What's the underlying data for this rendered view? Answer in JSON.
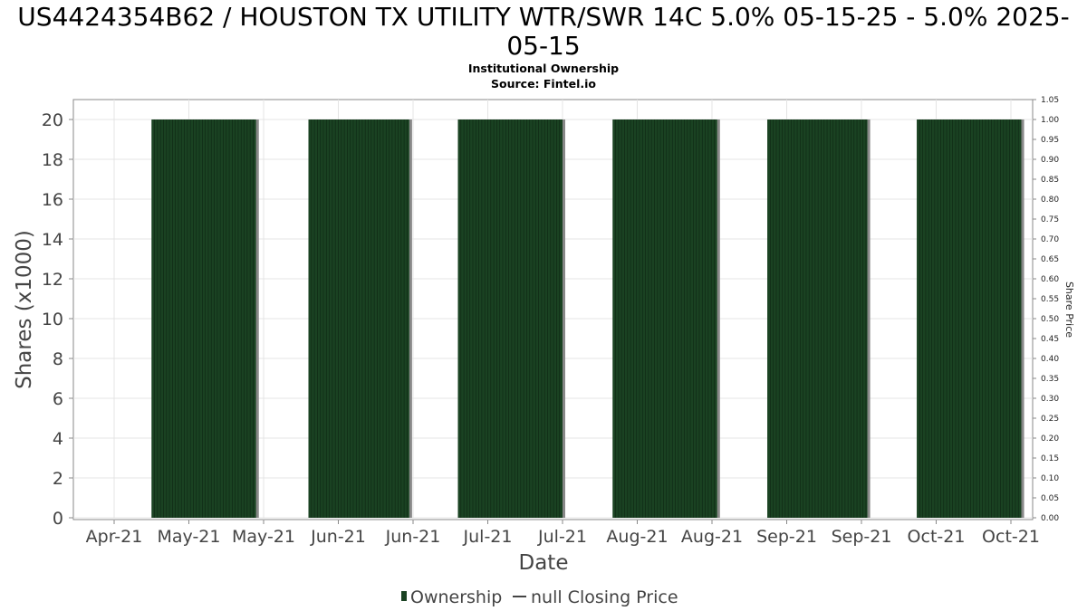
{
  "chart_data": {
    "type": "bar",
    "title": "US4424354B62 / HOUSTON TX UTILITY WTR/SWR 14C 5.0% 05-15-25 - 5.0% 2025-05-15",
    "title_lines": [
      "US4424354B62 / HOUSTON TX UTILITY WTR/SWR 14C 5.0% 05-15-25 - 5.0% 2025-",
      "05-15"
    ],
    "subtitle": "Institutional Ownership",
    "source": "Source: Fintel.io",
    "xlabel": "Date",
    "ylabel": "Shares (x1000)",
    "y2label": "Share Price",
    "ylim": [
      0,
      21
    ],
    "y2lim": [
      0,
      1.05
    ],
    "yticks": [
      "0",
      "2",
      "4",
      "6",
      "8",
      "10",
      "12",
      "14",
      "16",
      "18",
      "20"
    ],
    "y2ticks": [
      "0.00",
      "0.05",
      "0.10",
      "0.15",
      "0.20",
      "0.25",
      "0.30",
      "0.35",
      "0.40",
      "0.45",
      "0.50",
      "0.55",
      "0.60",
      "0.65",
      "0.70",
      "0.75",
      "0.80",
      "0.85",
      "0.90",
      "0.95",
      "1.00",
      "1.05"
    ],
    "xticks": [
      "Apr-21",
      "May-21",
      "May-21",
      "Jun-21",
      "Jun-21",
      "Jul-21",
      "Jul-21",
      "Aug-21",
      "Aug-21",
      "Sep-21",
      "Sep-21",
      "Oct-21",
      "Oct-21"
    ],
    "grid": true,
    "legend_position": "bottom-center",
    "series": [
      {
        "name": "Ownership",
        "color": "#1a4222",
        "blocks": [
          {
            "start_tick": 0.5,
            "end_tick": 1.9,
            "value": 20
          },
          {
            "start_tick": 2.6,
            "end_tick": 3.95,
            "value": 20
          },
          {
            "start_tick": 4.6,
            "end_tick": 6.0,
            "value": 20
          },
          {
            "start_tick": 6.67,
            "end_tick": 8.07,
            "value": 20
          },
          {
            "start_tick": 8.74,
            "end_tick": 10.08,
            "value": 20
          },
          {
            "start_tick": 10.74,
            "end_tick": 12.14,
            "value": 20
          }
        ]
      },
      {
        "name": "null Closing Price",
        "color": "#444444",
        "values": []
      }
    ]
  }
}
